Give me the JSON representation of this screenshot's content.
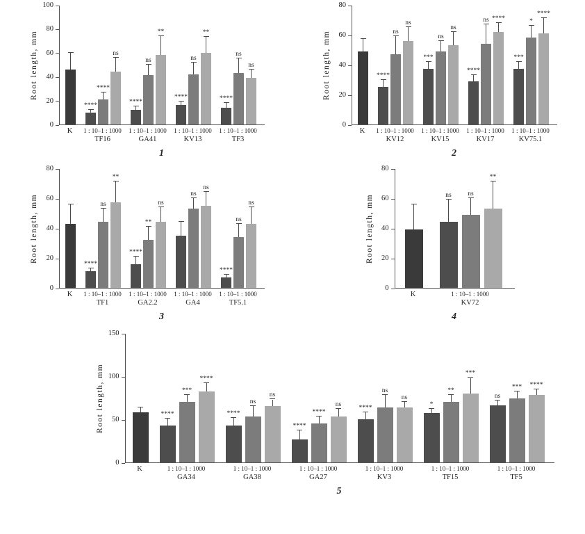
{
  "figure": {
    "ylabel": "Root length, mm",
    "dilution_label": "1 : 10–1 : 1000",
    "control_label": "K",
    "colors": {
      "control": "#3a3a3a",
      "d10": "#4d4d4d",
      "d100": "#7c7c7c",
      "d1000": "#a9a9a9",
      "axis": "#555555",
      "error": "#4a4a4a"
    }
  },
  "chart_data": [
    {
      "type": "bar",
      "panel": "1",
      "ylabel": "Root length, mm",
      "xlabel": "",
      "ylim": [
        0,
        100
      ],
      "yticks": [
        0,
        20,
        40,
        60,
        80,
        100
      ],
      "grid": false,
      "legend": "none",
      "control": {
        "label": "K",
        "value": 46,
        "err": 14,
        "sig": ""
      },
      "groups": [
        {
          "name": "TF16",
          "values": [
            10,
            21,
            44
          ],
          "errors": [
            2,
            6,
            12
          ],
          "sig": [
            "****",
            "****",
            "ns"
          ]
        },
        {
          "name": "GA41",
          "values": [
            12,
            41,
            58
          ],
          "errors": [
            3,
            9,
            16
          ],
          "sig": [
            "****",
            "ns",
            "**"
          ]
        },
        {
          "name": "KV13",
          "values": [
            16,
            42,
            60
          ],
          "errors": [
            3,
            10,
            13
          ],
          "sig": [
            "****",
            "ns",
            "**"
          ]
        },
        {
          "name": "TF3",
          "values": [
            14,
            43,
            39
          ],
          "errors": [
            4,
            12,
            7
          ],
          "sig": [
            "****",
            "ns",
            "ns"
          ]
        }
      ]
    },
    {
      "type": "bar",
      "panel": "2",
      "ylabel": "Root length, mm",
      "xlabel": "",
      "ylim": [
        0,
        80
      ],
      "yticks": [
        0,
        20,
        40,
        60,
        80
      ],
      "grid": false,
      "legend": "none",
      "control": {
        "label": "K",
        "value": 49,
        "err": 8,
        "sig": ""
      },
      "groups": [
        {
          "name": "KV12",
          "values": [
            25,
            47,
            56
          ],
          "errors": [
            5,
            12,
            9
          ],
          "sig": [
            "****",
            "ns",
            "ns"
          ]
        },
        {
          "name": "KV15",
          "values": [
            37,
            49,
            53
          ],
          "errors": [
            5,
            7,
            9
          ],
          "sig": [
            "***",
            "ns",
            "ns"
          ]
        },
        {
          "name": "KV17",
          "values": [
            29,
            54,
            62
          ],
          "errors": [
            4,
            13,
            6
          ],
          "sig": [
            "****",
            "ns",
            "****"
          ]
        },
        {
          "name": "KV75.1",
          "values": [
            37,
            58,
            61
          ],
          "errors": [
            5,
            8,
            10
          ],
          "sig": [
            "***",
            "*",
            "****"
          ]
        }
      ]
    },
    {
      "type": "bar",
      "panel": "3",
      "ylabel": "Root length, mm",
      "xlabel": "",
      "ylim": [
        0,
        80
      ],
      "yticks": [
        0,
        20,
        40,
        60,
        80
      ],
      "grid": false,
      "legend": "none",
      "control": {
        "label": "K",
        "value": 43,
        "err": 13,
        "sig": ""
      },
      "groups": [
        {
          "name": "TF1",
          "values": [
            11,
            44,
            57
          ],
          "errors": [
            2,
            9,
            14
          ],
          "sig": [
            "****",
            "ns",
            "**"
          ]
        },
        {
          "name": "GA2.2",
          "values": [
            16,
            32,
            44
          ],
          "errors": [
            5,
            9,
            10
          ],
          "sig": [
            "****",
            "**",
            "ns"
          ]
        },
        {
          "name": "GA4",
          "values": [
            35,
            53,
            55
          ],
          "errors": [
            9,
            7,
            9
          ],
          "sig": [
            "",
            "ns",
            "ns"
          ]
        },
        {
          "name": "TF5.1",
          "values": [
            7,
            34,
            43
          ],
          "errors": [
            2,
            9,
            11
          ],
          "sig": [
            "****",
            "ns",
            "ns"
          ]
        }
      ]
    },
    {
      "type": "bar",
      "panel": "4",
      "ylabel": "Root length, mm",
      "xlabel": "",
      "ylim": [
        0,
        80
      ],
      "yticks": [
        0,
        20,
        40,
        60,
        80
      ],
      "grid": false,
      "legend": "none",
      "control": {
        "label": "K",
        "value": 39,
        "err": 17,
        "sig": ""
      },
      "groups": [
        {
          "name": "KV72",
          "values": [
            44,
            49,
            53
          ],
          "errors": [
            15,
            11,
            18
          ],
          "sig": [
            "ns",
            "ns",
            "**"
          ]
        }
      ]
    },
    {
      "type": "bar",
      "panel": "5",
      "ylabel": "Root length, mm",
      "xlabel": "",
      "ylim": [
        0,
        150
      ],
      "yticks": [
        0,
        50,
        100,
        150
      ],
      "grid": false,
      "legend": "none",
      "control": {
        "label": "K",
        "value": 58,
        "err": 6,
        "sig": ""
      },
      "groups": [
        {
          "name": "GA34",
          "values": [
            43,
            70,
            82
          ],
          "errors": [
            8,
            8,
            10
          ],
          "sig": [
            "****",
            "***",
            "****"
          ]
        },
        {
          "name": "GA38",
          "values": [
            43,
            53,
            65
          ],
          "errors": [
            9,
            12,
            8
          ],
          "sig": [
            "****",
            "ns",
            "ns"
          ]
        },
        {
          "name": "GA27",
          "values": [
            27,
            45,
            53
          ],
          "errors": [
            10,
            8,
            9
          ],
          "sig": [
            "****",
            "****",
            "ns"
          ]
        },
        {
          "name": "KV3",
          "values": [
            50,
            64,
            64
          ],
          "errors": [
            8,
            14,
            6
          ],
          "sig": [
            "****",
            "ns",
            "ns"
          ]
        },
        {
          "name": "TF15",
          "values": [
            57,
            70,
            80
          ],
          "errors": [
            5,
            8,
            18
          ],
          "sig": [
            "*",
            "**",
            "***"
          ]
        },
        {
          "name": "TF5",
          "values": [
            66,
            74,
            78
          ],
          "errors": [
            6,
            8,
            7
          ],
          "sig": [
            "ns",
            "***",
            "****"
          ]
        }
      ]
    }
  ]
}
